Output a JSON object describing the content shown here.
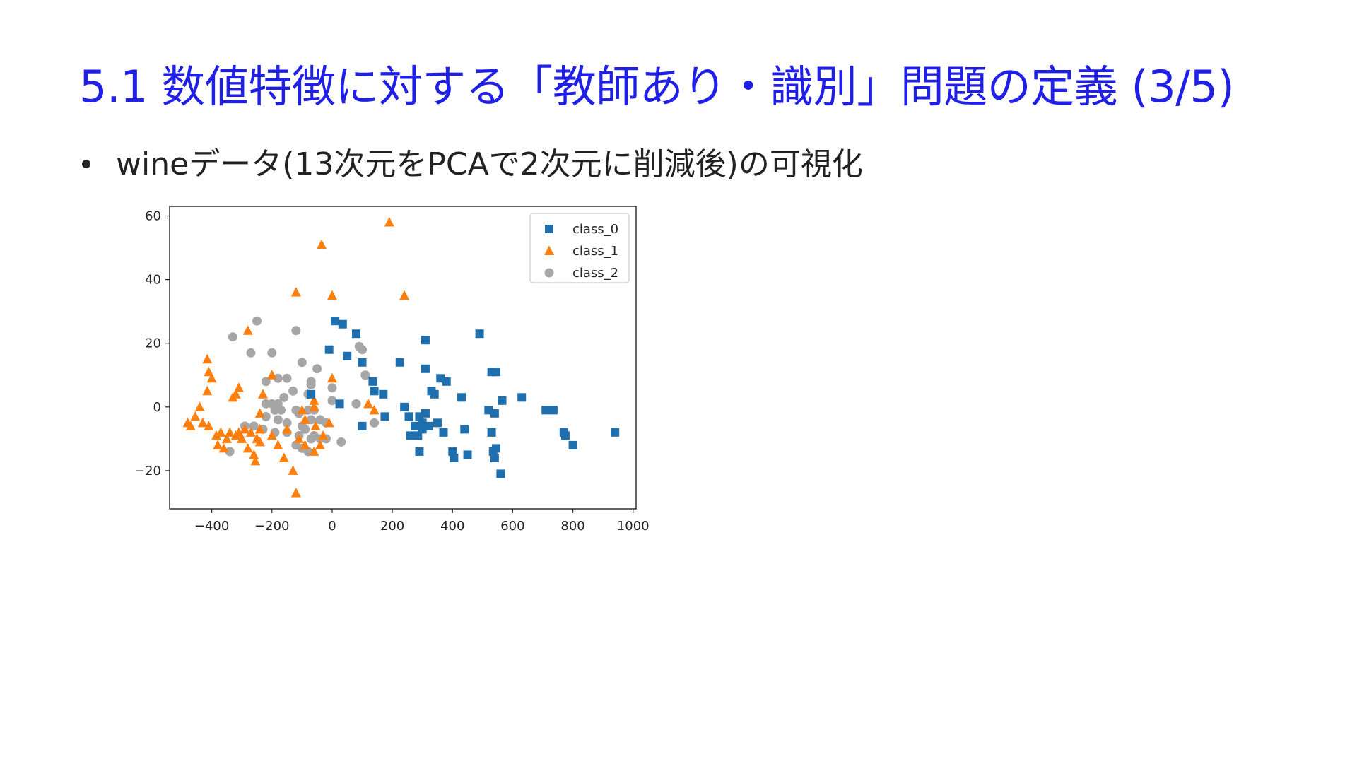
{
  "slide": {
    "title": "5.1 数値特徴に対する「教師あり・識別」問題の定義 (3/5)",
    "bullet": "wineデータ(13次元をPCAで2次元に削減後)の可視化"
  },
  "chart_data": {
    "type": "scatter",
    "title": "",
    "xlabel": "",
    "ylabel": "",
    "xlim": [
      -540,
      1010
    ],
    "ylim": [
      -32,
      63
    ],
    "xticks": [
      -400,
      -200,
      0,
      200,
      400,
      600,
      800,
      1000
    ],
    "yticks": [
      -20,
      0,
      20,
      40,
      60
    ],
    "xtick_labels": [
      "−400",
      "−200",
      "0",
      "200",
      "400",
      "600",
      "800",
      "1000"
    ],
    "ytick_labels": [
      "−20",
      "0",
      "20",
      "40",
      "60"
    ],
    "grid": false,
    "legend": "top-right",
    "series": [
      {
        "name": "class_0",
        "marker": "square",
        "color": "#1f6fae",
        "points": [
          [
            10,
            27
          ],
          [
            35,
            26
          ],
          [
            80,
            23
          ],
          [
            -10,
            18
          ],
          [
            50,
            16
          ],
          [
            100,
            14
          ],
          [
            225,
            14
          ],
          [
            310,
            21
          ],
          [
            490,
            23
          ],
          [
            310,
            12
          ],
          [
            135,
            8
          ],
          [
            140,
            5
          ],
          [
            170,
            4
          ],
          [
            -70,
            4
          ],
          [
            25,
            1
          ],
          [
            100,
            -6
          ],
          [
            175,
            -3
          ],
          [
            240,
            0
          ],
          [
            255,
            -3
          ],
          [
            275,
            -6
          ],
          [
            290,
            -3
          ],
          [
            300,
            -5
          ],
          [
            310,
            -2
          ],
          [
            330,
            5
          ],
          [
            360,
            9
          ],
          [
            380,
            8
          ],
          [
            340,
            4
          ],
          [
            350,
            -5
          ],
          [
            370,
            -8
          ],
          [
            430,
            3
          ],
          [
            440,
            -7
          ],
          [
            260,
            -9
          ],
          [
            290,
            -14
          ],
          [
            400,
            -14
          ],
          [
            405,
            -16
          ],
          [
            450,
            -15
          ],
          [
            530,
            -8
          ],
          [
            535,
            -14
          ],
          [
            540,
            -16
          ],
          [
            545,
            -13
          ],
          [
            560,
            -21
          ],
          [
            520,
            -1
          ],
          [
            540,
            -2
          ],
          [
            565,
            2
          ],
          [
            530,
            11
          ],
          [
            545,
            11
          ],
          [
            630,
            3
          ],
          [
            710,
            -1
          ],
          [
            735,
            -1
          ],
          [
            770,
            -8
          ],
          [
            775,
            -9
          ],
          [
            800,
            -12
          ],
          [
            940,
            -8
          ],
          [
            285,
            -9
          ],
          [
            300,
            -7
          ],
          [
            320,
            -6
          ]
        ]
      },
      {
        "name": "class_1",
        "marker": "triangle",
        "color": "#ff7f0e",
        "points": [
          [
            190,
            58
          ],
          [
            -35,
            51
          ],
          [
            -120,
            36
          ],
          [
            0,
            35
          ],
          [
            240,
            35
          ],
          [
            -280,
            24
          ],
          [
            -415,
            15
          ],
          [
            -410,
            11
          ],
          [
            -400,
            9
          ],
          [
            -415,
            5
          ],
          [
            -330,
            3
          ],
          [
            -320,
            4
          ],
          [
            -310,
            6
          ],
          [
            -440,
            0
          ],
          [
            -455,
            -3
          ],
          [
            -470,
            -6
          ],
          [
            -480,
            -5
          ],
          [
            -430,
            -5
          ],
          [
            -410,
            -6
          ],
          [
            -370,
            -8
          ],
          [
            -380,
            -12
          ],
          [
            -360,
            -13
          ],
          [
            -350,
            -10
          ],
          [
            -340,
            -8
          ],
          [
            -320,
            -9
          ],
          [
            -310,
            -8
          ],
          [
            -300,
            -10
          ],
          [
            -280,
            -13
          ],
          [
            -260,
            -15
          ],
          [
            -255,
            -17
          ],
          [
            -250,
            -10
          ],
          [
            -240,
            -2
          ],
          [
            -230,
            4
          ],
          [
            -240,
            -7
          ],
          [
            -200,
            -9
          ],
          [
            -180,
            -12
          ],
          [
            -160,
            -16
          ],
          [
            -130,
            -20
          ],
          [
            -120,
            -27
          ],
          [
            -110,
            -10
          ],
          [
            -90,
            -12
          ],
          [
            -60,
            -14
          ],
          [
            -40,
            -12
          ],
          [
            -30,
            -9
          ],
          [
            -10,
            -5
          ],
          [
            0,
            9
          ],
          [
            -60,
            2
          ],
          [
            -55,
            -6
          ],
          [
            -100,
            -1
          ],
          [
            -150,
            -7
          ],
          [
            120,
            1
          ],
          [
            140,
            -1
          ],
          [
            -90,
            -4
          ],
          [
            -60,
            0
          ],
          [
            -200,
            10
          ],
          [
            -270,
            -8
          ],
          [
            -290,
            -7
          ],
          [
            -240,
            -11
          ],
          [
            -385,
            -9
          ]
        ]
      },
      {
        "name": "class_2",
        "marker": "circle",
        "color": "#a6a6a6",
        "points": [
          [
            -250,
            27
          ],
          [
            -330,
            22
          ],
          [
            -120,
            24
          ],
          [
            -270,
            17
          ],
          [
            -200,
            17
          ],
          [
            -100,
            14
          ],
          [
            90,
            19
          ],
          [
            100,
            18
          ],
          [
            -50,
            12
          ],
          [
            110,
            10
          ],
          [
            -220,
            8
          ],
          [
            -180,
            9
          ],
          [
            -150,
            9
          ],
          [
            -70,
            8
          ],
          [
            -70,
            7
          ],
          [
            -220,
            1
          ],
          [
            -200,
            1
          ],
          [
            -180,
            1
          ],
          [
            -160,
            3
          ],
          [
            -130,
            5
          ],
          [
            -80,
            4
          ],
          [
            0,
            6
          ],
          [
            -190,
            -1
          ],
          [
            -170,
            -1
          ],
          [
            -120,
            -1
          ],
          [
            -80,
            -1
          ],
          [
            -60,
            -1
          ],
          [
            0,
            2
          ],
          [
            80,
            1
          ],
          [
            -220,
            -3
          ],
          [
            -180,
            -4
          ],
          [
            -150,
            -5
          ],
          [
            -110,
            -2
          ],
          [
            -100,
            -6
          ],
          [
            -70,
            -4
          ],
          [
            -40,
            -4
          ],
          [
            -20,
            -5
          ],
          [
            140,
            -5
          ],
          [
            -290,
            -6
          ],
          [
            -260,
            -6
          ],
          [
            -230,
            -7
          ],
          [
            -190,
            -8
          ],
          [
            -150,
            -8
          ],
          [
            -110,
            -9
          ],
          [
            -90,
            -7
          ],
          [
            -60,
            -9
          ],
          [
            -40,
            -10
          ],
          [
            -120,
            -12
          ],
          [
            -100,
            -13
          ],
          [
            -80,
            -14
          ],
          [
            -340,
            -14
          ],
          [
            -20,
            -10
          ],
          [
            30,
            -11
          ],
          [
            -70,
            -10
          ]
        ]
      }
    ]
  }
}
